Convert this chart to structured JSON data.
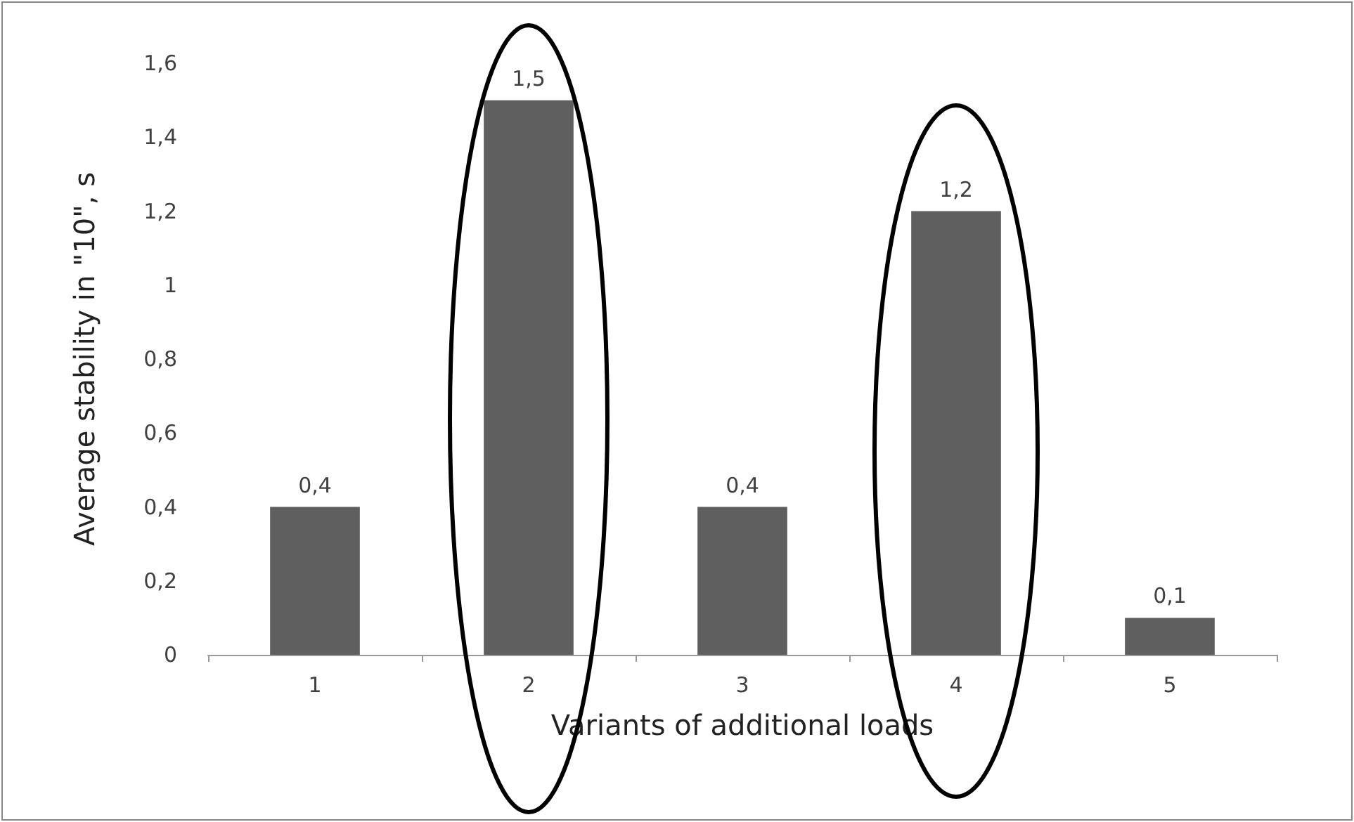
{
  "chart_data": {
    "type": "bar",
    "xlabel": "Variants of additional loads",
    "ylabel": "Average stability in \"10\", s",
    "categories": [
      "1",
      "2",
      "3",
      "4",
      "5"
    ],
    "values": [
      0.4,
      1.5,
      0.4,
      1.2,
      0.1
    ],
    "color": "#5f5f5f",
    "value_labels": [
      "0,4",
      "1,5",
      "0,4",
      "1,2",
      "0,1"
    ],
    "ylim": [
      0,
      1.6
    ],
    "yticks": [
      {
        "value": 0,
        "label": "0"
      },
      {
        "value": 0.2,
        "label": "0,2"
      },
      {
        "value": 0.4,
        "label": "0,4"
      },
      {
        "value": 0.6,
        "label": "0,6"
      },
      {
        "value": 0.8,
        "label": "0,8"
      },
      {
        "value": 1,
        "label": "1"
      },
      {
        "value": 1.2,
        "label": "1,2"
      },
      {
        "value": 1.4,
        "label": "1,4"
      },
      {
        "value": 1.6,
        "label": "1,6"
      }
    ],
    "grid": false
  }
}
